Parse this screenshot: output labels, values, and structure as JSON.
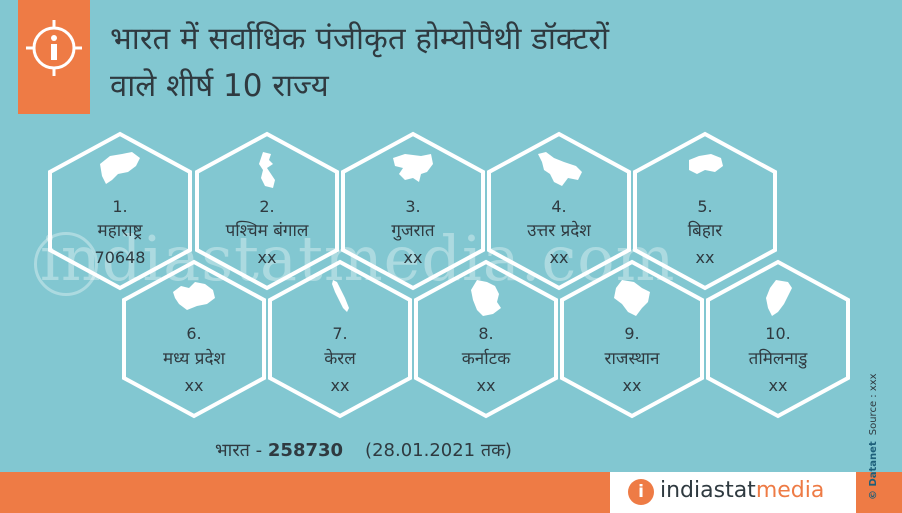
{
  "title_line1": "भारत में सर्वाधिक पंजीकृत होम्योपैथी डॉक्टरों",
  "title_line2": "वाले शीर्ष 10 राज्य",
  "info_icon": "info-icon",
  "watermark": "indiastatmedia.com",
  "states": [
    {
      "rank": "1.",
      "name": "महाराष्ट्र",
      "value": "70648"
    },
    {
      "rank": "2.",
      "name": "पश्चिम बंगाल",
      "value": "xx"
    },
    {
      "rank": "3.",
      "name": "गुजरात",
      "value": "xx"
    },
    {
      "rank": "4.",
      "name": "उत्तर प्रदेश",
      "value": "xx"
    },
    {
      "rank": "5.",
      "name": "बिहार",
      "value": "xx"
    },
    {
      "rank": "6.",
      "name": "मध्य प्रदेश",
      "value": "xx"
    },
    {
      "rank": "7.",
      "name": "केरल",
      "value": "xx"
    },
    {
      "rank": "8.",
      "name": "कर्नाटक",
      "value": "xx"
    },
    {
      "rank": "9.",
      "name": "राजस्थान",
      "value": "xx"
    },
    {
      "rank": "10.",
      "name": "तमिलनाडु",
      "value": "xx"
    }
  ],
  "total": {
    "label": "भारत - ",
    "value": "258730",
    "date": "(28.01.2021 तक)"
  },
  "footer": {
    "logo_letter": "i",
    "logo_main": "indiastat",
    "logo_accent": "media"
  },
  "side": {
    "brand": "© Datanet",
    "source": "Source : xxx"
  },
  "colors": {
    "background": "#82c7d1",
    "accent": "#ee7b45",
    "text": "#2f3a40"
  }
}
